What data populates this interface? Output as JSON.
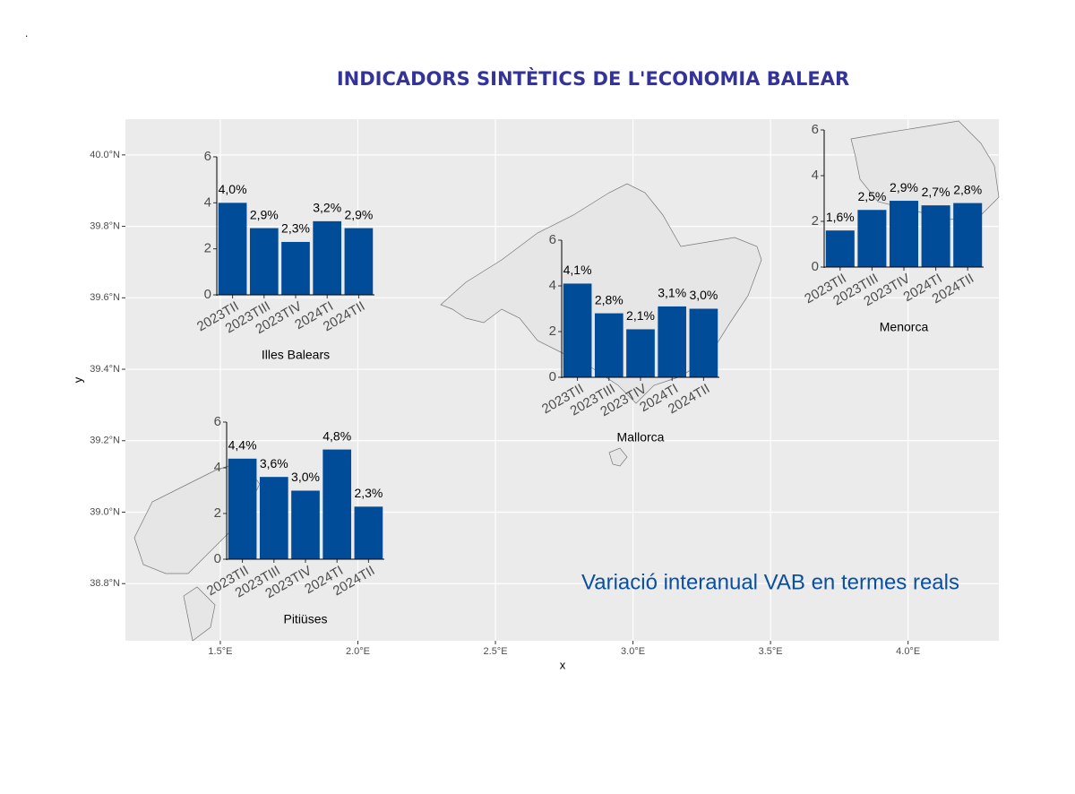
{
  "corner_text": ".",
  "chart_data": [
    {
      "type": "map",
      "title": "INDICADORS SINTÈTICS DE L'ECONOMIA BALEAR",
      "annotation": "Variació interanual VAB en termes reals",
      "xlabel": "x",
      "ylabel": "y",
      "grid": true,
      "xlim": [
        1.155,
        4.33
      ],
      "ylim": [
        38.64,
        40.1
      ],
      "xticks": [
        {
          "value": 1.5,
          "label": "1.5°E"
        },
        {
          "value": 2.0,
          "label": "2.0°E"
        },
        {
          "value": 2.5,
          "label": "2.5°E"
        },
        {
          "value": 3.0,
          "label": "3.0°E"
        },
        {
          "value": 3.5,
          "label": "3.5°E"
        },
        {
          "value": 4.0,
          "label": "4.0°E"
        }
      ],
      "yticks": [
        {
          "value": 38.8,
          "label": "38.8°N"
        },
        {
          "value": 39.0,
          "label": "39.0°N"
        },
        {
          "value": 39.2,
          "label": "39.2°N"
        },
        {
          "value": 39.4,
          "label": "39.4°N"
        },
        {
          "value": 39.6,
          "label": "39.6°N"
        },
        {
          "value": 39.8,
          "label": "39.8°N"
        },
        {
          "value": 40.0,
          "label": "40.0°N"
        }
      ]
    },
    {
      "type": "bar",
      "xlabel": "Illes Balears",
      "color": "#004c99",
      "categories": [
        "2023TII",
        "2023TIII",
        "2023TIV",
        "2024TI",
        "2024TII"
      ],
      "values": [
        4.0,
        2.9,
        2.3,
        3.2,
        2.9
      ],
      "value_labels": [
        "4,0%",
        "2,9%",
        "2,3%",
        "3,2%",
        "2,9%"
      ],
      "ylim": [
        0,
        6
      ],
      "yticks": [
        0,
        2,
        4,
        6
      ]
    },
    {
      "type": "bar",
      "xlabel": "Mallorca",
      "color": "#004c99",
      "categories": [
        "2023TII",
        "2023TIII",
        "2023TIV",
        "2024TI",
        "2024TII"
      ],
      "values": [
        4.1,
        2.8,
        2.1,
        3.1,
        3.0
      ],
      "value_labels": [
        "4,1%",
        "2,8%",
        "2,1%",
        "3,1%",
        "3,0%"
      ],
      "ylim": [
        0,
        6
      ],
      "yticks": [
        0,
        2,
        4,
        6
      ]
    },
    {
      "type": "bar",
      "xlabel": "Menorca",
      "color": "#004c99",
      "categories": [
        "2023TII",
        "2023TIII",
        "2023TIV",
        "2024TI",
        "2024TII"
      ],
      "values": [
        1.6,
        2.5,
        2.9,
        2.7,
        2.8
      ],
      "value_labels": [
        "1,6%",
        "2,5%",
        "2,9%",
        "2,7%",
        "2,8%"
      ],
      "ylim": [
        0,
        6
      ],
      "yticks": [
        0,
        2,
        4,
        6
      ]
    },
    {
      "type": "bar",
      "xlabel": "Pitiüses",
      "color": "#004c99",
      "categories": [
        "2023TII",
        "2023TIII",
        "2023TIV",
        "2024TI",
        "2024TII"
      ],
      "values": [
        4.4,
        3.6,
        3.0,
        4.8,
        2.3
      ],
      "value_labels": [
        "4,4%",
        "3,6%",
        "3,0%",
        "4,8%",
        "2,3%"
      ],
      "ylim": [
        0,
        6
      ],
      "yticks": [
        0,
        2,
        4,
        6
      ]
    }
  ]
}
